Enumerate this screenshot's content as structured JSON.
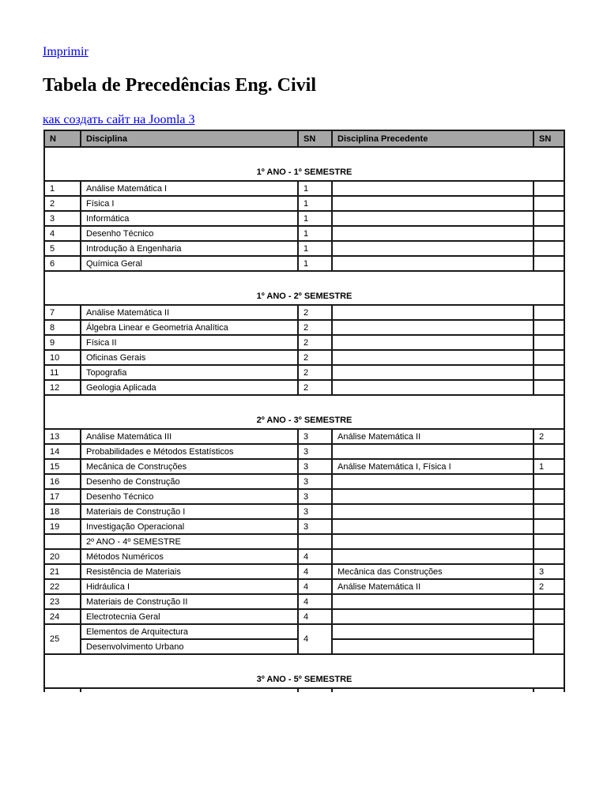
{
  "print_link": "Imprimir",
  "title": "Tabela de Precedências Eng. Civil",
  "joomla_link": "как создать сайт на Joomla 3",
  "table": {
    "headers": [
      "N",
      "Disciplina",
      "SN",
      "Disciplina Precedente",
      "SN"
    ],
    "rows": [
      {
        "type": "semester",
        "label": "1º ANO -   1º SEMESTRE"
      },
      {
        "type": "row",
        "cells": [
          "1",
          "Análise Matemática I",
          "1",
          "",
          ""
        ]
      },
      {
        "type": "row",
        "cells": [
          "2",
          "Física I",
          "1",
          "",
          ""
        ]
      },
      {
        "type": "row",
        "cells": [
          "3",
          "Informática",
          "1",
          "",
          ""
        ]
      },
      {
        "type": "row",
        "cells": [
          "4",
          "Desenho Técnico",
          "1",
          "",
          ""
        ]
      },
      {
        "type": "row",
        "cells": [
          "5",
          "Introdução à Engenharia",
          "1",
          "",
          ""
        ]
      },
      {
        "type": "row",
        "cells": [
          "6",
          "Química Geral",
          "1",
          "",
          ""
        ]
      },
      {
        "type": "semester",
        "label": "1º ANO -   2º SEMESTRE"
      },
      {
        "type": "row",
        "cells": [
          "7",
          "Análise Matemática II",
          "2",
          "",
          ""
        ]
      },
      {
        "type": "row",
        "cells": [
          "8",
          "Álgebra Linear e Geometria Analítica",
          "2",
          "",
          ""
        ]
      },
      {
        "type": "row",
        "cells": [
          "9",
          "Física II",
          "2",
          "",
          ""
        ]
      },
      {
        "type": "row",
        "cells": [
          "10",
          "Oficinas Gerais",
          "2",
          "",
          ""
        ]
      },
      {
        "type": "row",
        "cells": [
          "11",
          "Topografia",
          "2",
          "",
          ""
        ]
      },
      {
        "type": "row",
        "cells": [
          "12",
          "Geologia Aplicada",
          "2",
          "",
          ""
        ]
      },
      {
        "type": "semester",
        "label": "2º ANO - 3º SEMESTRE"
      },
      {
        "type": "row",
        "cells": [
          "13",
          "Análise Matemática III",
          "3",
          "Análise Matemática II",
          "2"
        ]
      },
      {
        "type": "row",
        "cells": [
          "14",
          "Probabilidades e Métodos Estatísticos",
          "3",
          "",
          ""
        ]
      },
      {
        "type": "row",
        "cells": [
          "15",
          "Mecânica de Construções",
          "3",
          "Análise Matemática I, Física I",
          "1"
        ]
      },
      {
        "type": "row",
        "cells": [
          "16",
          "Desenho de Construção",
          "3",
          "",
          ""
        ]
      },
      {
        "type": "row",
        "cells": [
          "17",
          "Desenho Técnico",
          "3",
          "",
          ""
        ]
      },
      {
        "type": "row",
        "cells": [
          "18",
          "Materiais de Construção I",
          "3",
          "",
          ""
        ]
      },
      {
        "type": "row",
        "cells": [
          "19",
          "Investigação Operacional",
          "3",
          "",
          ""
        ]
      },
      {
        "type": "row",
        "cells": [
          "",
          "2º ANO - 4º SEMESTRE",
          "",
          "",
          ""
        ]
      },
      {
        "type": "row",
        "cells": [
          "20",
          "Métodos Numéricos",
          "4",
          "",
          ""
        ]
      },
      {
        "type": "row",
        "cells": [
          "21",
          "Resistência de Materiais",
          "4",
          "Mecânica das Construções",
          "3"
        ]
      },
      {
        "type": "row",
        "cells": [
          "22",
          "Hidráulica I",
          "4",
          "Análise Matemática II",
          "2"
        ]
      },
      {
        "type": "row",
        "cells": [
          "23",
          "Materiais de Construção II",
          "4",
          "",
          ""
        ]
      },
      {
        "type": "row",
        "cells": [
          "24",
          "Electrotecnia Geral",
          "4",
          "",
          ""
        ]
      },
      {
        "type": "split",
        "n": "25",
        "sn": "4",
        "items": [
          "Elementos de Arquitectura",
          "Desenvolvimento Urbano"
        ]
      },
      {
        "type": "semester",
        "label": "3º ANO - 5º SEMESTRE"
      }
    ]
  }
}
